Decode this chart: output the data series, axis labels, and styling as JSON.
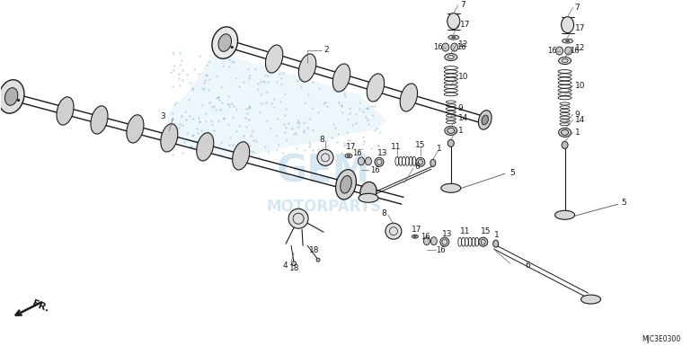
{
  "bg_color": "#ffffff",
  "part_number": "MJC3E0300",
  "fig_width": 7.69,
  "fig_height": 3.85,
  "dpi": 100,
  "watermark_color": "#b8d8ea",
  "fr_label": "FR.",
  "black": "#1a1a1a",
  "gray": "#666666",
  "lightgray": "#cccccc",
  "midgray": "#999999",
  "darkgray": "#555555"
}
